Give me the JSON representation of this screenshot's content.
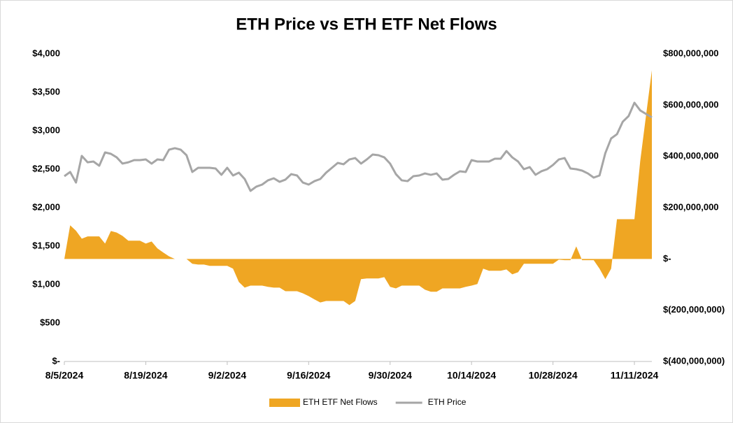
{
  "chart_data": {
    "type": "combo",
    "title": "ETH Price vs ETH ETF Net Flows",
    "categories": [
      "8/5/2024",
      null,
      null,
      null,
      null,
      null,
      null,
      null,
      null,
      null,
      null,
      null,
      null,
      null,
      "8/19/2024",
      null,
      null,
      null,
      null,
      null,
      null,
      null,
      null,
      null,
      null,
      null,
      null,
      null,
      "9/2/2024",
      null,
      null,
      null,
      null,
      null,
      null,
      null,
      null,
      null,
      null,
      null,
      null,
      null,
      "9/16/2024",
      null,
      null,
      null,
      null,
      null,
      null,
      null,
      null,
      null,
      null,
      null,
      null,
      null,
      "9/30/2024",
      null,
      null,
      null,
      null,
      null,
      null,
      null,
      null,
      null,
      null,
      null,
      null,
      null,
      "10/14/2024",
      null,
      null,
      null,
      null,
      null,
      null,
      null,
      null,
      null,
      null,
      null,
      null,
      null,
      "10/28/2024",
      null,
      null,
      null,
      null,
      null,
      null,
      null,
      null,
      null,
      null,
      null,
      null,
      null,
      "11/11/2024",
      null,
      null,
      null
    ],
    "ylim": [
      0,
      4000
    ],
    "yticks": [
      {
        "value": 0,
        "label": "$-"
      },
      {
        "value": 500,
        "label": "$500"
      },
      {
        "value": 1000,
        "label": "$1,000"
      },
      {
        "value": 1500,
        "label": "$1,500"
      },
      {
        "value": 2000,
        "label": "$2,000"
      },
      {
        "value": 2500,
        "label": "$2,500"
      },
      {
        "value": 3000,
        "label": "$3,000"
      },
      {
        "value": 3500,
        "label": "$3,500"
      },
      {
        "value": 4000,
        "label": "$4,000"
      }
    ],
    "y2lim": [
      -400000000,
      800000000
    ],
    "y2ticks": [
      {
        "value": -400000000,
        "label": "$(400,000,000)"
      },
      {
        "value": -200000000,
        "label": "$(200,000,000)"
      },
      {
        "value": 0,
        "label": "$-"
      },
      {
        "value": 200000000,
        "label": "$200,000,000"
      },
      {
        "value": 400000000,
        "label": "$400,000,000"
      },
      {
        "value": 600000000,
        "label": "$600,000,000"
      },
      {
        "value": 800000000,
        "label": "$800,000,000"
      }
    ],
    "legend": "bottom",
    "series": [
      {
        "name": "ETH ETF Net Flows",
        "type": "area",
        "axis": "y2",
        "color": "#efa623",
        "values": [
          0,
          131000000,
          110000000,
          79000000,
          88000000,
          88000000,
          88000000,
          60000000,
          109000000,
          103000000,
          90000000,
          71000000,
          71000000,
          71000000,
          60000000,
          68000000,
          41000000,
          25000000,
          10000000,
          0,
          0,
          0,
          -19000000,
          -22000000,
          -22000000,
          -27000000,
          -27000000,
          -27000000,
          -27000000,
          -38000000,
          -90000000,
          -112000000,
          -104000000,
          -104000000,
          -104000000,
          -109000000,
          -112000000,
          -112000000,
          -126000000,
          -126000000,
          -126000000,
          -134000000,
          -145000000,
          -158000000,
          -170000000,
          -164000000,
          -164000000,
          -164000000,
          -164000000,
          -180000000,
          -164000000,
          -79000000,
          -76000000,
          -76000000,
          -76000000,
          -71000000,
          -109000000,
          -115000000,
          -104000000,
          -104000000,
          -104000000,
          -104000000,
          -120000000,
          -128000000,
          -128000000,
          -115000000,
          -115000000,
          -115000000,
          -115000000,
          -109000000,
          -104000000,
          -98000000,
          -38000000,
          -46000000,
          -46000000,
          -46000000,
          -41000000,
          -60000000,
          -52000000,
          -19000000,
          -19000000,
          -19000000,
          -19000000,
          -19000000,
          -19000000,
          -3000000,
          -5000000,
          -5000000,
          49000000,
          -5000000,
          -5000000,
          -5000000,
          -38000000,
          -79000000,
          -38000000,
          155000000,
          155000000,
          155000000,
          155000000,
          382000000,
          560000000,
          736000000
        ]
      },
      {
        "name": "ETH Price",
        "type": "line",
        "axis": "y",
        "color": "#a6a6a6",
        "values": [
          2409,
          2464,
          2327,
          2673,
          2590,
          2600,
          2545,
          2718,
          2700,
          2654,
          2573,
          2590,
          2618,
          2618,
          2627,
          2573,
          2627,
          2618,
          2754,
          2773,
          2754,
          2682,
          2464,
          2518,
          2518,
          2518,
          2509,
          2427,
          2518,
          2418,
          2455,
          2373,
          2218,
          2273,
          2300,
          2355,
          2382,
          2336,
          2364,
          2436,
          2418,
          2327,
          2300,
          2345,
          2373,
          2455,
          2518,
          2582,
          2564,
          2627,
          2645,
          2573,
          2627,
          2691,
          2682,
          2654,
          2573,
          2436,
          2355,
          2345,
          2409,
          2418,
          2445,
          2427,
          2445,
          2364,
          2373,
          2427,
          2473,
          2464,
          2618,
          2600,
          2600,
          2600,
          2636,
          2636,
          2736,
          2654,
          2600,
          2500,
          2527,
          2427,
          2473,
          2500,
          2555,
          2627,
          2645,
          2509,
          2500,
          2482,
          2445,
          2391,
          2418,
          2709,
          2900,
          2955,
          3118,
          3191,
          3364,
          3264,
          3218,
          3173
        ]
      }
    ]
  }
}
